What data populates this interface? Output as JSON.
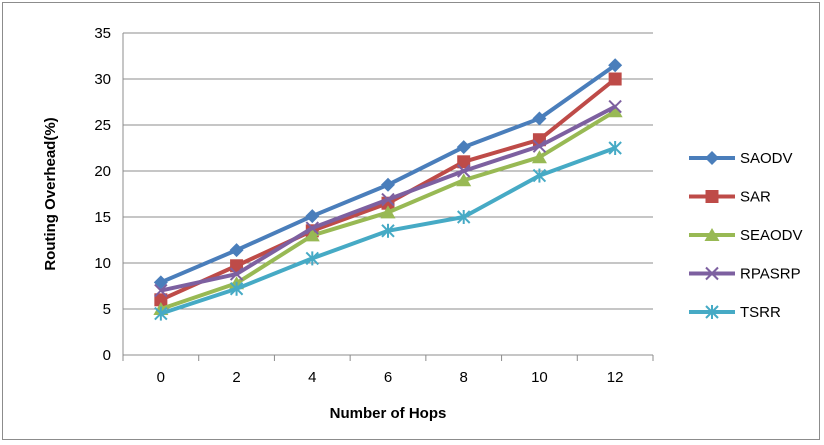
{
  "chart_data": {
    "type": "line",
    "xlabel": "Number of Hops",
    "ylabel": "Routing Overhead(%)",
    "x": [
      0,
      2,
      4,
      6,
      8,
      10,
      12
    ],
    "ylim": [
      0,
      35
    ],
    "yticks": [
      0,
      5,
      10,
      15,
      20,
      25,
      30,
      35
    ],
    "grid": "horizontal",
    "legend": "right",
    "series": [
      {
        "name": "SAODV",
        "color": "#4a7ebb",
        "marker": "diamond",
        "values": [
          7.9,
          11.4,
          15.1,
          18.5,
          22.6,
          25.7,
          31.5
        ]
      },
      {
        "name": "SAR",
        "color": "#be4b48",
        "marker": "square",
        "values": [
          6.0,
          9.7,
          13.5,
          16.5,
          21.0,
          23.4,
          30.0
        ]
      },
      {
        "name": "SEAODV",
        "color": "#98b954",
        "marker": "triangle",
        "values": [
          5.0,
          7.8,
          13.0,
          15.5,
          19.0,
          21.5,
          26.5
        ]
      },
      {
        "name": "RPASRP",
        "color": "#7d60a0",
        "marker": "x",
        "values": [
          7.0,
          8.8,
          13.8,
          16.9,
          20.0,
          22.7,
          27.0
        ]
      },
      {
        "name": "TSRR",
        "color": "#46aac5",
        "marker": "asterisk",
        "values": [
          4.5,
          7.2,
          10.5,
          13.5,
          15.0,
          19.5,
          22.5
        ]
      }
    ]
  }
}
